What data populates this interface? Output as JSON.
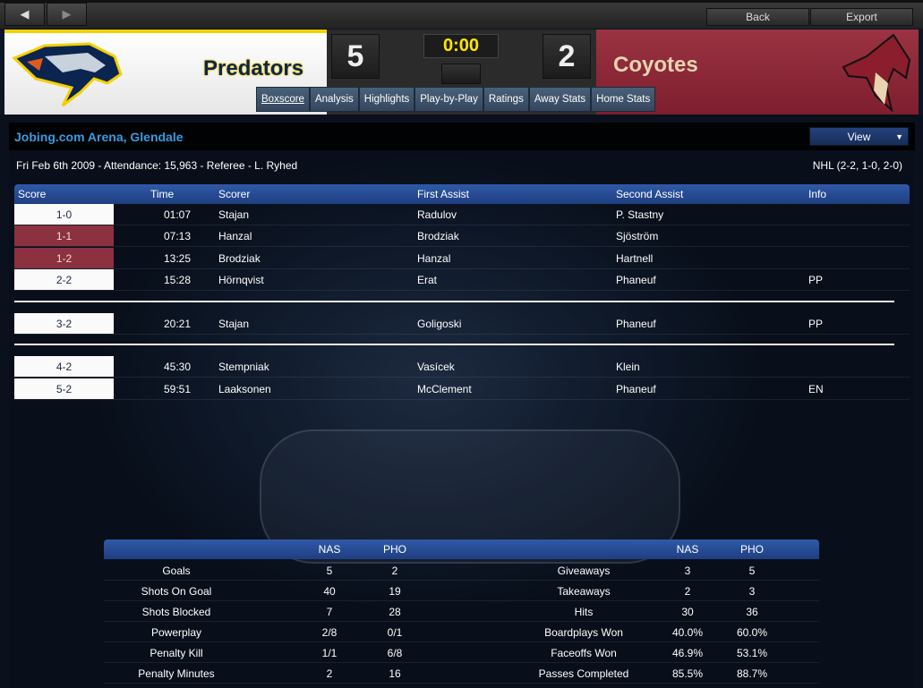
{
  "nav": {
    "back_icon": "chevron-left-icon",
    "forward_icon": "chevron-right-icon",
    "back_label": "Back",
    "export_label": "Export"
  },
  "header": {
    "home": {
      "name": "Predators",
      "score": "5",
      "color": "#f5d000"
    },
    "away": {
      "name": "Coyotes",
      "score": "2",
      "color": "#8c2535"
    },
    "clock": "0:00"
  },
  "tabs": [
    {
      "label": "Boxscore",
      "active": true
    },
    {
      "label": "Analysis"
    },
    {
      "label": "Highlights"
    },
    {
      "label": "Play-by-Play"
    },
    {
      "label": "Ratings"
    },
    {
      "label": "Away Stats"
    },
    {
      "label": "Home Stats"
    }
  ],
  "game": {
    "venue": "Jobing.com Arena, Glendale",
    "view_label": "View",
    "details": "Fri Feb 6th 2009 - Attendance: 15,963 - Referee - L. Ryhed",
    "periods": "NHL (2-2, 1-0, 2-0)"
  },
  "goals": {
    "columns": [
      "Score",
      "Time",
      "Scorer",
      "First Assist",
      "Second Assist",
      "Info"
    ],
    "rows": [
      {
        "score": "1-0",
        "team": "home",
        "time": "01:07",
        "scorer": "Stajan",
        "a1": "Radulov",
        "a2": "P. Stastny",
        "info": ""
      },
      {
        "score": "1-1",
        "team": "away",
        "time": "07:13",
        "scorer": "Hanzal",
        "a1": "Brodziak",
        "a2": "Sjöström",
        "info": ""
      },
      {
        "score": "1-2",
        "team": "away",
        "time": "13:25",
        "scorer": "Brodziak",
        "a1": "Hanzal",
        "a2": "Hartnell",
        "info": ""
      },
      {
        "score": "2-2",
        "team": "home",
        "time": "15:28",
        "scorer": "Hörnqvist",
        "a1": "Erat",
        "a2": "Phaneuf",
        "info": "PP"
      },
      {
        "score": "3-2",
        "team": "home",
        "time": "20:21",
        "scorer": "Stajan",
        "a1": "Goligoski",
        "a2": "Phaneuf",
        "info": "PP"
      },
      {
        "score": "4-2",
        "team": "home",
        "time": "45:30",
        "scorer": "Stempniak",
        "a1": "Vasícek",
        "a2": "Klein",
        "info": ""
      },
      {
        "score": "5-2",
        "team": "home",
        "time": "59:51",
        "scorer": "Laaksonen",
        "a1": "McClement",
        "a2": "Phaneuf",
        "info": "EN"
      }
    ]
  },
  "stats": {
    "headers": [
      "NAS",
      "PHO",
      "NAS",
      "PHO"
    ],
    "rows": [
      [
        "Goals",
        "5",
        "2",
        "Giveaways",
        "3",
        "5"
      ],
      [
        "Shots On Goal",
        "40",
        "19",
        "Takeaways",
        "2",
        "3"
      ],
      [
        "Shots Blocked",
        "7",
        "28",
        "Hits",
        "30",
        "36"
      ],
      [
        "Powerplay",
        "2/8",
        "0/1",
        "Boardplays Won",
        "40.0%",
        "60.0%"
      ],
      [
        "Penalty Kill",
        "1/1",
        "6/8",
        "Faceoffs Won",
        "46.9%",
        "53.1%"
      ],
      [
        "Penalty Minutes",
        "2",
        "16",
        "Passes Completed",
        "85.5%",
        "88.7%"
      ]
    ]
  }
}
